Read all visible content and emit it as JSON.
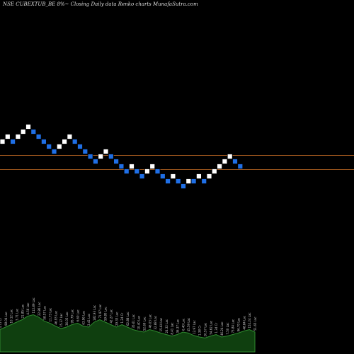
{
  "chart_data": {
    "type": "renko",
    "title": "NSE CUBEXTUB_BE 8%~  Closing Daily data  Renko  charts MunafaSutra.com",
    "colors": {
      "background": "#000000",
      "up_brick": "#ffffff",
      "down_brick": "#1f6fe6",
      "brick_outline": "#000000",
      "reference_line": "#a0581e",
      "volume_fill": "#0f3f0f",
      "volume_edge": "#2f8a2f",
      "volume_label": "#cfcfcf"
    },
    "bricks": [
      {
        "level": 3,
        "dir": "up"
      },
      {
        "level": 4,
        "dir": "up"
      },
      {
        "level": 3,
        "dir": "down"
      },
      {
        "level": 4,
        "dir": "up"
      },
      {
        "level": 5,
        "dir": "up"
      },
      {
        "level": 6,
        "dir": "up"
      },
      {
        "level": 5,
        "dir": "down"
      },
      {
        "level": 4,
        "dir": "down"
      },
      {
        "level": 3,
        "dir": "down"
      },
      {
        "level": 2,
        "dir": "down"
      },
      {
        "level": 1,
        "dir": "down"
      },
      {
        "level": 2,
        "dir": "up"
      },
      {
        "level": 3,
        "dir": "up"
      },
      {
        "level": 4,
        "dir": "up"
      },
      {
        "level": 3,
        "dir": "down"
      },
      {
        "level": 2,
        "dir": "down"
      },
      {
        "level": 1,
        "dir": "down"
      },
      {
        "level": 0,
        "dir": "down"
      },
      {
        "level": -1,
        "dir": "down"
      },
      {
        "level": 0,
        "dir": "up"
      },
      {
        "level": 1,
        "dir": "up"
      },
      {
        "level": 0,
        "dir": "down"
      },
      {
        "level": -1,
        "dir": "down"
      },
      {
        "level": -2,
        "dir": "down"
      },
      {
        "level": -3,
        "dir": "down"
      },
      {
        "level": -2,
        "dir": "up"
      },
      {
        "level": -3,
        "dir": "down"
      },
      {
        "level": -4,
        "dir": "down"
      },
      {
        "level": -3,
        "dir": "up"
      },
      {
        "level": -2,
        "dir": "up"
      },
      {
        "level": -3,
        "dir": "down"
      },
      {
        "level": -4,
        "dir": "down"
      },
      {
        "level": -5,
        "dir": "down"
      },
      {
        "level": -4,
        "dir": "up"
      },
      {
        "level": -5,
        "dir": "down"
      },
      {
        "level": -6,
        "dir": "down"
      },
      {
        "level": -5,
        "dir": "up"
      },
      {
        "level": -5,
        "dir": "down"
      },
      {
        "level": -4,
        "dir": "up"
      },
      {
        "level": -5,
        "dir": "down"
      },
      {
        "level": -4,
        "dir": "up"
      },
      {
        "level": -3,
        "dir": "up"
      },
      {
        "level": -2,
        "dir": "up"
      },
      {
        "level": -1,
        "dir": "up"
      },
      {
        "level": 0,
        "dir": "up"
      },
      {
        "level": -1,
        "dir": "down"
      },
      {
        "level": -2,
        "dir": "down"
      }
    ],
    "reference_levels": [
      0.3,
      -2.5
    ],
    "volume": [
      {
        "v": 0.45,
        "label": "4.75 Cr"
      },
      {
        "v": 0.5,
        "label": "98.04 Lac"
      },
      {
        "v": 0.55,
        "label": "10.12 Lac"
      },
      {
        "v": 0.6,
        "label": "3.71 Lac"
      },
      {
        "v": 0.65,
        "label": "21.85 Lac"
      },
      {
        "v": 0.72,
        "label": "4.56 Lac"
      },
      {
        "v": 0.75,
        "label": "112.89 Lac"
      },
      {
        "v": 0.7,
        "label": "22.86 Lac"
      },
      {
        "v": 0.62,
        "label": "58.57 Lac"
      },
      {
        "v": 0.58,
        "label": "11.73 Lac"
      },
      {
        "v": 0.52,
        "label": "46.93 Lac"
      },
      {
        "v": 0.47,
        "label": "15.37 Lac"
      },
      {
        "v": 0.5,
        "label": "36.05 Lac"
      },
      {
        "v": 0.55,
        "label": "95.79 Lac"
      },
      {
        "v": 0.58,
        "label": "6.60 Lac"
      },
      {
        "v": 0.52,
        "label": "63.96 Lac"
      },
      {
        "v": 0.5,
        "label": "3.41 Lac"
      },
      {
        "v": 0.6,
        "label": "182.93 Lac"
      },
      {
        "v": 0.65,
        "label": "71.97 Lac"
      },
      {
        "v": 0.6,
        "label": "59.80 Lac"
      },
      {
        "v": 0.55,
        "label": "42.27 Lac"
      },
      {
        "v": 0.5,
        "label": "29.33 Lac"
      },
      {
        "v": 0.55,
        "label": "1.24 Cr"
      },
      {
        "v": 0.5,
        "label": "62.88 Lac"
      },
      {
        "v": 0.45,
        "label": "35.61 Lac"
      },
      {
        "v": 0.42,
        "label": "10.40 Lac"
      },
      {
        "v": 0.4,
        "label": "52.69 Lac"
      },
      {
        "v": 0.45,
        "label": "46.03 Lac"
      },
      {
        "v": 0.42,
        "label": "32.88 Lac"
      },
      {
        "v": 0.38,
        "label": "15.64 Lac"
      },
      {
        "v": 0.35,
        "label": "24.32 Lac"
      },
      {
        "v": 0.32,
        "label": "8.41 Lac"
      },
      {
        "v": 0.35,
        "label": "36.37 Lac"
      },
      {
        "v": 0.4,
        "label": "6.40 Lac"
      },
      {
        "v": 0.38,
        "label": "45.59 Lac"
      },
      {
        "v": 0.33,
        "label": "12.97 Lac"
      },
      {
        "v": 0.3,
        "label": "1.38 Cr"
      },
      {
        "v": 0.28,
        "label": "20.57 Lac"
      },
      {
        "v": 0.32,
        "label": "54.62 Lac"
      },
      {
        "v": 0.35,
        "label": "1.34 Cr"
      },
      {
        "v": 0.3,
        "label": "46.24 Lac"
      },
      {
        "v": 0.32,
        "label": "7.50 Lac"
      },
      {
        "v": 0.35,
        "label": "73.84 Lac"
      },
      {
        "v": 0.38,
        "label": "96.70 Lac"
      },
      {
        "v": 0.42,
        "label": "48.84 Lac"
      },
      {
        "v": 0.45,
        "label": "152.24 Lac"
      },
      {
        "v": 0.4,
        "label": "51.65 Lac"
      }
    ]
  }
}
